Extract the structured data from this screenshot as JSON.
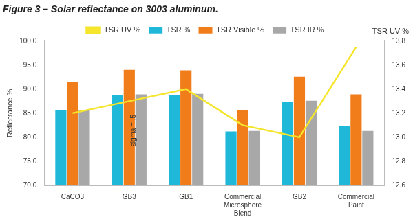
{
  "chart_data": {
    "type": "bar",
    "title": "Figure 3 – Solar reflectance on 3003 aluminum.",
    "y_label": "Reflectance %",
    "y2_label": "TSR UV %",
    "categories": [
      "CaCO3",
      "GB3",
      "GB1",
      "Commercial Microsphere Blend",
      "GB2",
      "Commercial Paint"
    ],
    "series": [
      {
        "name": "TSR %",
        "color": "#1fb8d9",
        "values": [
          85.7,
          88.7,
          88.8,
          81.2,
          87.3,
          82.3
        ]
      },
      {
        "name": "TSR Visible %",
        "color": "#f07d1a",
        "values": [
          91.4,
          94.0,
          93.9,
          85.6,
          92.6,
          88.9
        ]
      },
      {
        "name": "TSR IR %",
        "color": "#a8a8a8",
        "values": [
          85.6,
          88.9,
          89.0,
          81.3,
          87.6,
          81.3
        ]
      },
      {
        "name": "TSR UV %",
        "color": "#f5e52c",
        "type": "line",
        "axis": "y2",
        "values": [
          13.2,
          13.3,
          13.4,
          13.1,
          13.0,
          13.75
        ]
      }
    ],
    "ylim": [
      70,
      100
    ],
    "yticks": [
      {
        "value": 70,
        "label": "70.0"
      },
      {
        "value": 75,
        "label": "75.0"
      },
      {
        "value": 80,
        "label": "80.0"
      },
      {
        "value": 85,
        "label": "85.0"
      },
      {
        "value": 90,
        "label": "90.0"
      },
      {
        "value": 95,
        "label": "95.0"
      },
      {
        "value": 100,
        "label": "100.0"
      }
    ],
    "y2lim": [
      12.6,
      13.8
    ],
    "y2ticks": [
      {
        "value": 12.6,
        "label": "12.6"
      },
      {
        "value": 12.8,
        "label": "12.8"
      },
      {
        "value": 13.0,
        "label": "13.0"
      },
      {
        "value": 13.2,
        "label": "13.2"
      },
      {
        "value": 13.4,
        "label": "13.4"
      },
      {
        "value": 13.6,
        "label": "13.6"
      },
      {
        "value": 13.8,
        "label": "13.8"
      }
    ],
    "annotations": [
      {
        "text": "sigma = .5",
        "category": "GB3"
      }
    ],
    "grid": false,
    "legend": "top"
  }
}
